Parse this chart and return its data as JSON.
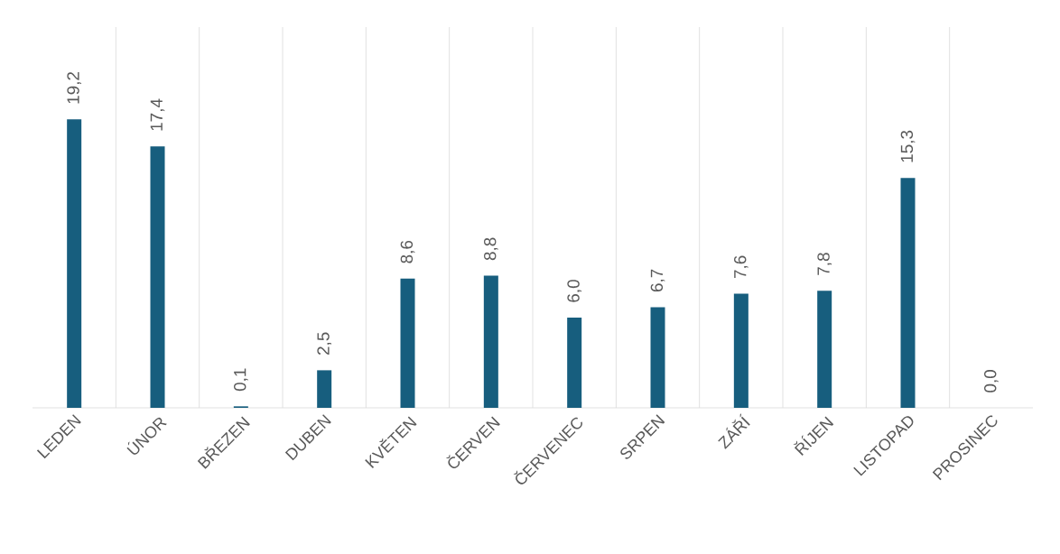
{
  "chart_data": {
    "type": "bar",
    "categories": [
      "LEDEN",
      "ÚNOR",
      "BŘEZEN",
      "DUBEN",
      "KVĚTEN",
      "ČERVEN",
      "ČERVENEC",
      "SRPEN",
      "ZÁŘÍ",
      "ŘÍJEN",
      "LISTOPAD",
      "PROSINEC"
    ],
    "values": [
      19.2,
      17.4,
      0.1,
      2.5,
      8.6,
      8.8,
      6.0,
      6.7,
      7.6,
      7.8,
      15.3,
      0.0
    ],
    "value_labels": [
      "19,2",
      "17,4",
      "0,1",
      "2,5",
      "8,6",
      "8,8",
      "6,0",
      "6,7",
      "7,6",
      "7,8",
      "15,3",
      "0,0"
    ],
    "color": "#175e7e",
    "grid": "x"
  }
}
